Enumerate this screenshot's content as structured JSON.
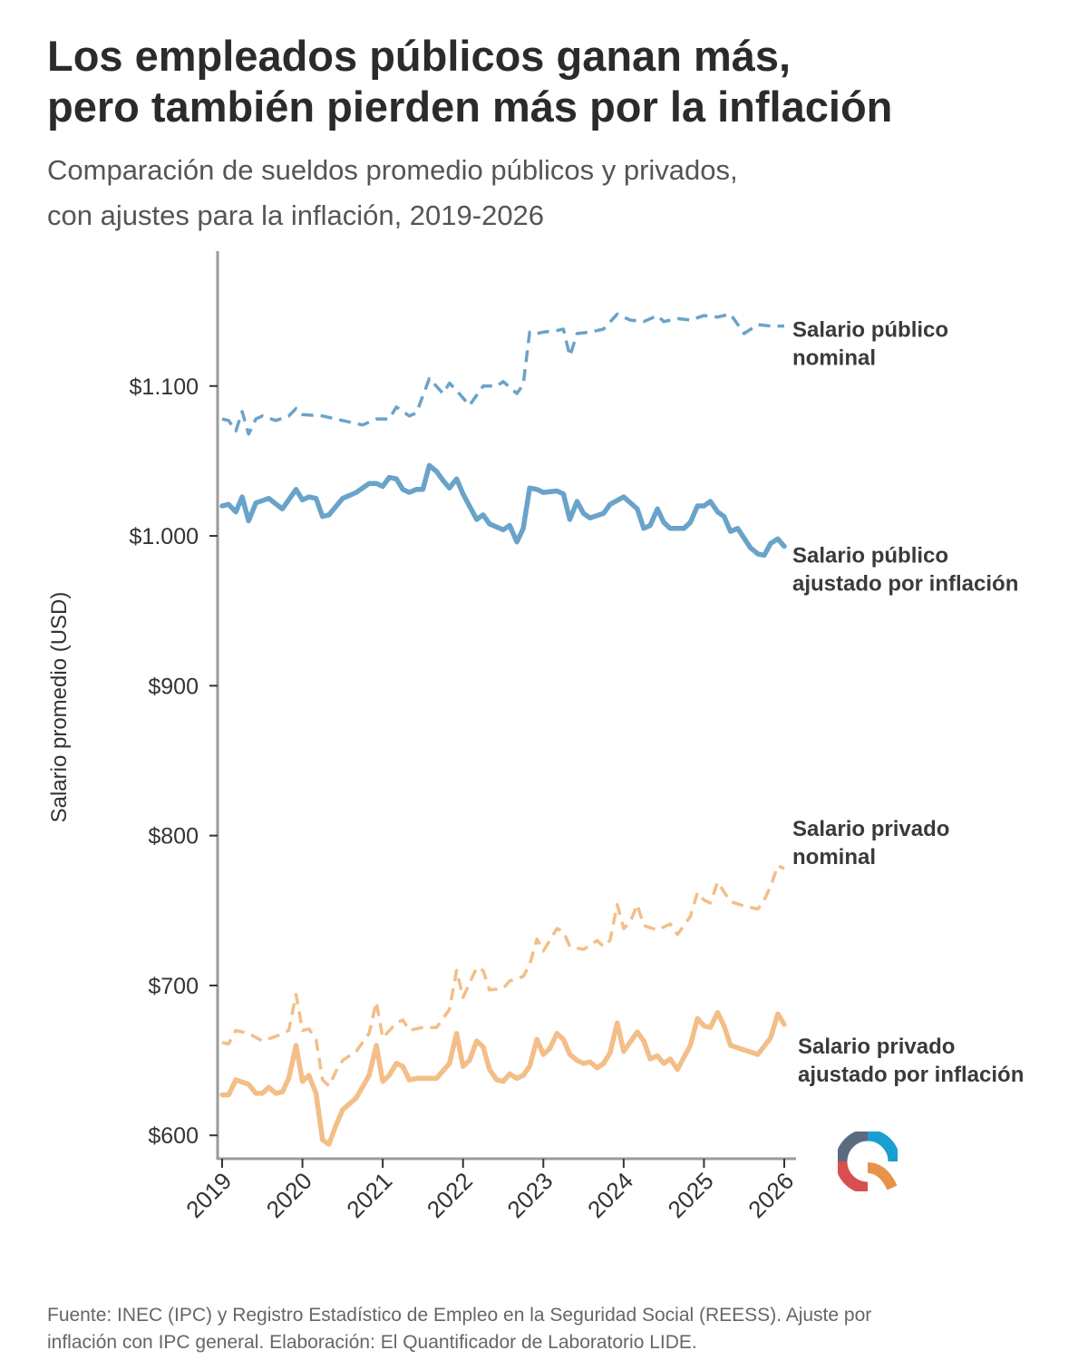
{
  "header": {
    "title_lines": [
      "Los empleados públicos ganan más,",
      "pero también pierden más por la inflación"
    ],
    "subtitle_lines": [
      "Comparación de sueldos promedio públicos y privados,",
      "con ajustes para la inflación, 2019-2026"
    ]
  },
  "footer": {
    "source_lines": [
      "Fuente: INEC (IPC) y Registro Estadístico de Empleo en la Seguridad Social (REESS). Ajuste por",
      "inflación con IPC general. Elaboración: El Quantificador de Laboratorio LIDE."
    ]
  },
  "logo": {
    "icon": "quantificador-logo-icon",
    "colors": [
      "#1a9fd0",
      "#e8924a",
      "#d94f4f",
      "#5b6b7f"
    ]
  },
  "chart_data": {
    "type": "line",
    "ylabel": "Salario promedio (USD)",
    "xlabel": "",
    "xlim": [
      2019,
      2026
    ],
    "ylim": [
      585,
      1190
    ],
    "x_ticks": [
      2019,
      2020,
      2021,
      2022,
      2023,
      2024,
      2025,
      2026
    ],
    "x_tick_labels": [
      "2019",
      "2020",
      "2021",
      "2022",
      "2023",
      "2024",
      "2025",
      "2026"
    ],
    "y_ticks": [
      600,
      700,
      800,
      900,
      1000,
      1100
    ],
    "y_tick_labels": [
      "$600",
      "$700",
      "$800",
      "$900",
      "$1.000",
      "$1.100"
    ],
    "grid": false,
    "legend": "direct labels at line ends",
    "series": [
      {
        "name": "Salario público nominal",
        "label_lines": [
          "Salario público",
          "nominal"
        ],
        "color": "#6aa3c9",
        "style": "dashed",
        "points": [
          [
            2019.0,
            1078
          ],
          [
            2019.08,
            1077
          ],
          [
            2019.17,
            1070
          ],
          [
            2019.25,
            1083
          ],
          [
            2019.33,
            1068
          ],
          [
            2019.42,
            1078
          ],
          [
            2019.5,
            1080
          ],
          [
            2019.67,
            1077
          ],
          [
            2019.83,
            1080
          ],
          [
            2019.92,
            1085
          ],
          [
            2020.0,
            1081
          ],
          [
            2020.25,
            1080
          ],
          [
            2020.5,
            1077
          ],
          [
            2020.75,
            1074
          ],
          [
            2020.92,
            1078
          ],
          [
            2021.08,
            1078
          ],
          [
            2021.17,
            1086
          ],
          [
            2021.33,
            1080
          ],
          [
            2021.42,
            1082
          ],
          [
            2021.58,
            1105
          ],
          [
            2021.75,
            1095
          ],
          [
            2021.83,
            1102
          ],
          [
            2021.92,
            1097
          ],
          [
            2022.08,
            1087
          ],
          [
            2022.25,
            1100
          ],
          [
            2022.42,
            1100
          ],
          [
            2022.5,
            1103
          ],
          [
            2022.67,
            1095
          ],
          [
            2022.75,
            1101
          ],
          [
            2022.83,
            1136
          ],
          [
            2022.92,
            1135
          ],
          [
            2023.0,
            1136
          ],
          [
            2023.17,
            1137
          ],
          [
            2023.25,
            1138
          ],
          [
            2023.33,
            1120
          ],
          [
            2023.42,
            1135
          ],
          [
            2023.58,
            1136
          ],
          [
            2023.75,
            1138
          ],
          [
            2023.92,
            1148
          ],
          [
            2024.08,
            1144
          ],
          [
            2024.25,
            1143
          ],
          [
            2024.42,
            1147
          ],
          [
            2024.5,
            1143
          ],
          [
            2024.67,
            1145
          ],
          [
            2024.83,
            1144
          ],
          [
            2025.0,
            1147
          ],
          [
            2025.17,
            1146
          ],
          [
            2025.33,
            1148
          ],
          [
            2025.5,
            1135
          ],
          [
            2025.67,
            1141
          ],
          [
            2025.83,
            1140
          ],
          [
            2026.0,
            1140
          ]
        ]
      },
      {
        "name": "Salario público ajustado por inflación",
        "label_lines": [
          "Salario público",
          "ajustado por inflación"
        ],
        "color": "#6aa3c9",
        "style": "solid",
        "points": [
          [
            2019.0,
            1020
          ],
          [
            2019.08,
            1021
          ],
          [
            2019.17,
            1016
          ],
          [
            2019.25,
            1026
          ],
          [
            2019.33,
            1010
          ],
          [
            2019.42,
            1022
          ],
          [
            2019.58,
            1025
          ],
          [
            2019.75,
            1018
          ],
          [
            2019.92,
            1031
          ],
          [
            2020.0,
            1024
          ],
          [
            2020.08,
            1026
          ],
          [
            2020.17,
            1025
          ],
          [
            2020.25,
            1013
          ],
          [
            2020.33,
            1014
          ],
          [
            2020.5,
            1025
          ],
          [
            2020.67,
            1029
          ],
          [
            2020.83,
            1035
          ],
          [
            2020.92,
            1035
          ],
          [
            2021.0,
            1033
          ],
          [
            2021.08,
            1039
          ],
          [
            2021.17,
            1038
          ],
          [
            2021.25,
            1031
          ],
          [
            2021.33,
            1029
          ],
          [
            2021.42,
            1031
          ],
          [
            2021.5,
            1031
          ],
          [
            2021.58,
            1047
          ],
          [
            2021.67,
            1043
          ],
          [
            2021.75,
            1037
          ],
          [
            2021.83,
            1032
          ],
          [
            2021.92,
            1038
          ],
          [
            2022.0,
            1028
          ],
          [
            2022.17,
            1011
          ],
          [
            2022.25,
            1014
          ],
          [
            2022.33,
            1008
          ],
          [
            2022.5,
            1004
          ],
          [
            2022.58,
            1007
          ],
          [
            2022.67,
            996
          ],
          [
            2022.75,
            1005
          ],
          [
            2022.83,
            1032
          ],
          [
            2022.92,
            1031
          ],
          [
            2023.0,
            1029
          ],
          [
            2023.17,
            1030
          ],
          [
            2023.25,
            1028
          ],
          [
            2023.33,
            1011
          ],
          [
            2023.42,
            1023
          ],
          [
            2023.5,
            1015
          ],
          [
            2023.58,
            1012
          ],
          [
            2023.75,
            1015
          ],
          [
            2023.83,
            1021
          ],
          [
            2024.0,
            1026
          ],
          [
            2024.17,
            1018
          ],
          [
            2024.25,
            1005
          ],
          [
            2024.33,
            1007
          ],
          [
            2024.42,
            1018
          ],
          [
            2024.5,
            1009
          ],
          [
            2024.58,
            1005
          ],
          [
            2024.75,
            1005
          ],
          [
            2024.83,
            1009
          ],
          [
            2024.92,
            1020
          ],
          [
            2025.0,
            1020
          ],
          [
            2025.08,
            1023
          ],
          [
            2025.17,
            1016
          ],
          [
            2025.25,
            1013
          ],
          [
            2025.33,
            1003
          ],
          [
            2025.42,
            1005
          ],
          [
            2025.58,
            992
          ],
          [
            2025.67,
            988
          ],
          [
            2025.75,
            987
          ],
          [
            2025.83,
            995
          ],
          [
            2025.92,
            998
          ],
          [
            2026.0,
            993
          ]
        ]
      },
      {
        "name": "Salario privado nominal",
        "label_lines": [
          "Salario privado",
          "nominal"
        ],
        "color": "#f3be88",
        "style": "dashed",
        "points": [
          [
            2019.0,
            662
          ],
          [
            2019.08,
            661
          ],
          [
            2019.17,
            670
          ],
          [
            2019.33,
            668
          ],
          [
            2019.5,
            663
          ],
          [
            2019.67,
            666
          ],
          [
            2019.83,
            670
          ],
          [
            2019.92,
            694
          ],
          [
            2020.0,
            670
          ],
          [
            2020.08,
            671
          ],
          [
            2020.17,
            664
          ],
          [
            2020.25,
            637
          ],
          [
            2020.33,
            633
          ],
          [
            2020.42,
            643
          ],
          [
            2020.5,
            650
          ],
          [
            2020.67,
            656
          ],
          [
            2020.83,
            668
          ],
          [
            2020.92,
            689
          ],
          [
            2021.0,
            665
          ],
          [
            2021.17,
            675
          ],
          [
            2021.25,
            677
          ],
          [
            2021.33,
            670
          ],
          [
            2021.5,
            672
          ],
          [
            2021.67,
            672
          ],
          [
            2021.83,
            684
          ],
          [
            2021.92,
            710
          ],
          [
            2022.0,
            692
          ],
          [
            2022.17,
            712
          ],
          [
            2022.25,
            710
          ],
          [
            2022.33,
            697
          ],
          [
            2022.5,
            698
          ],
          [
            2022.58,
            703
          ],
          [
            2022.75,
            706
          ],
          [
            2022.83,
            714
          ],
          [
            2022.92,
            731
          ],
          [
            2023.0,
            723
          ],
          [
            2023.17,
            738
          ],
          [
            2023.25,
            736
          ],
          [
            2023.33,
            726
          ],
          [
            2023.5,
            724
          ],
          [
            2023.67,
            730
          ],
          [
            2023.75,
            726
          ],
          [
            2023.83,
            730
          ],
          [
            2023.92,
            754
          ],
          [
            2024.0,
            738
          ],
          [
            2024.08,
            742
          ],
          [
            2024.17,
            754
          ],
          [
            2024.25,
            740
          ],
          [
            2024.42,
            737
          ],
          [
            2024.58,
            741
          ],
          [
            2024.67,
            734
          ],
          [
            2024.75,
            740
          ],
          [
            2024.83,
            746
          ],
          [
            2024.92,
            762
          ],
          [
            2025.0,
            757
          ],
          [
            2025.08,
            755
          ],
          [
            2025.17,
            769
          ],
          [
            2025.33,
            756
          ],
          [
            2025.5,
            753
          ],
          [
            2025.67,
            751
          ],
          [
            2025.75,
            757
          ],
          [
            2025.83,
            766
          ],
          [
            2025.92,
            780
          ],
          [
            2026.0,
            778
          ]
        ]
      },
      {
        "name": "Salario privado ajustado por inflación",
        "label_lines": [
          "Salario privado",
          "ajustado por inflación"
        ],
        "color": "#f3be88",
        "style": "solid",
        "points": [
          [
            2019.0,
            627
          ],
          [
            2019.08,
            627
          ],
          [
            2019.17,
            637
          ],
          [
            2019.33,
            634
          ],
          [
            2019.42,
            628
          ],
          [
            2019.5,
            628
          ],
          [
            2019.58,
            632
          ],
          [
            2019.67,
            628
          ],
          [
            2019.75,
            629
          ],
          [
            2019.83,
            638
          ],
          [
            2019.92,
            660
          ],
          [
            2020.0,
            636
          ],
          [
            2020.08,
            640
          ],
          [
            2020.17,
            628
          ],
          [
            2020.25,
            597
          ],
          [
            2020.33,
            594
          ],
          [
            2020.42,
            607
          ],
          [
            2020.5,
            617
          ],
          [
            2020.67,
            625
          ],
          [
            2020.83,
            640
          ],
          [
            2020.92,
            660
          ],
          [
            2021.0,
            636
          ],
          [
            2021.08,
            640
          ],
          [
            2021.17,
            648
          ],
          [
            2021.25,
            646
          ],
          [
            2021.33,
            637
          ],
          [
            2021.42,
            638
          ],
          [
            2021.58,
            638
          ],
          [
            2021.67,
            638
          ],
          [
            2021.75,
            643
          ],
          [
            2021.83,
            648
          ],
          [
            2021.92,
            668
          ],
          [
            2022.0,
            646
          ],
          [
            2022.08,
            650
          ],
          [
            2022.17,
            663
          ],
          [
            2022.25,
            659
          ],
          [
            2022.33,
            644
          ],
          [
            2022.42,
            637
          ],
          [
            2022.5,
            636
          ],
          [
            2022.58,
            641
          ],
          [
            2022.67,
            638
          ],
          [
            2022.75,
            640
          ],
          [
            2022.83,
            646
          ],
          [
            2022.92,
            664
          ],
          [
            2023.0,
            654
          ],
          [
            2023.08,
            658
          ],
          [
            2023.17,
            668
          ],
          [
            2023.25,
            664
          ],
          [
            2023.33,
            654
          ],
          [
            2023.42,
            650
          ],
          [
            2023.5,
            648
          ],
          [
            2023.58,
            649
          ],
          [
            2023.67,
            645
          ],
          [
            2023.75,
            648
          ],
          [
            2023.83,
            655
          ],
          [
            2023.92,
            675
          ],
          [
            2024.0,
            656
          ],
          [
            2024.17,
            669
          ],
          [
            2024.25,
            663
          ],
          [
            2024.33,
            651
          ],
          [
            2024.42,
            653
          ],
          [
            2024.5,
            648
          ],
          [
            2024.58,
            651
          ],
          [
            2024.67,
            644
          ],
          [
            2024.83,
            660
          ],
          [
            2024.92,
            678
          ],
          [
            2025.0,
            673
          ],
          [
            2025.08,
            672
          ],
          [
            2025.17,
            682
          ],
          [
            2025.25,
            673
          ],
          [
            2025.33,
            660
          ],
          [
            2025.5,
            657
          ],
          [
            2025.67,
            654
          ],
          [
            2025.83,
            665
          ],
          [
            2025.92,
            681
          ],
          [
            2026.0,
            674
          ]
        ]
      }
    ]
  }
}
